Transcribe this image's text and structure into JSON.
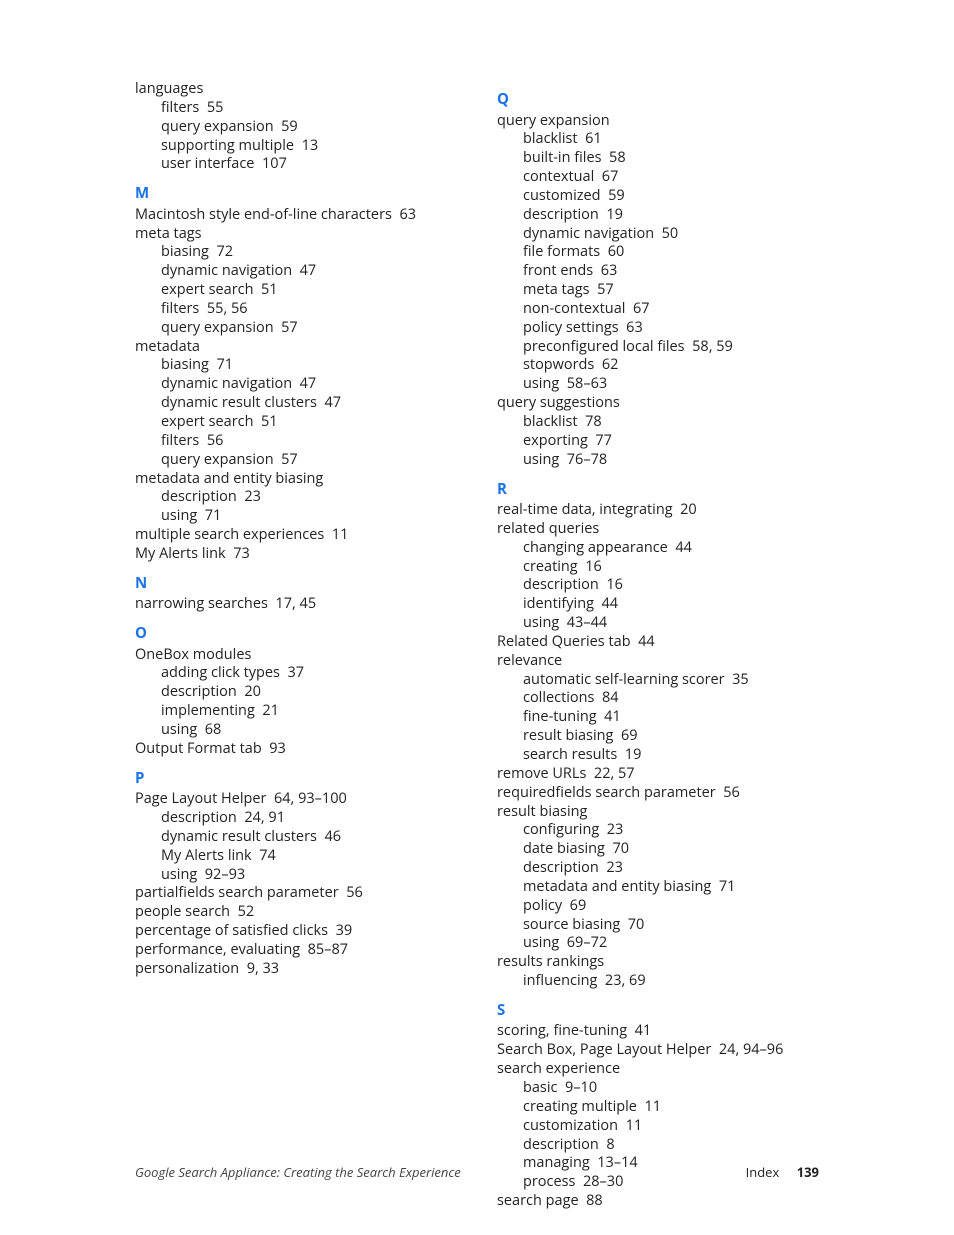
{
  "letter_color": "#1a73e8",
  "footer": {
    "title": "Google Search Appliance: Creating the Search Experience",
    "section": "Index",
    "page": "139"
  },
  "left": [
    {
      "type": "entry",
      "level": 0,
      "text": "languages"
    },
    {
      "type": "entry",
      "level": 1,
      "text": "filters",
      "pages": "55"
    },
    {
      "type": "entry",
      "level": 1,
      "text": "query expansion",
      "pages": "59"
    },
    {
      "type": "entry",
      "level": 1,
      "text": "supporting multiple",
      "pages": "13"
    },
    {
      "type": "entry",
      "level": 1,
      "text": "user interface",
      "pages": "107"
    },
    {
      "type": "letter",
      "text": "M"
    },
    {
      "type": "entry",
      "level": 0,
      "text": "Macintosh style end-of-line characters",
      "pages": "63"
    },
    {
      "type": "entry",
      "level": 0,
      "text": "meta tags"
    },
    {
      "type": "entry",
      "level": 1,
      "text": "biasing",
      "pages": "72"
    },
    {
      "type": "entry",
      "level": 1,
      "text": "dynamic navigation",
      "pages": "47"
    },
    {
      "type": "entry",
      "level": 1,
      "text": "expert search",
      "pages": "51"
    },
    {
      "type": "entry",
      "level": 1,
      "text": "filters",
      "pages": "55, 56"
    },
    {
      "type": "entry",
      "level": 1,
      "text": "query expansion",
      "pages": "57"
    },
    {
      "type": "entry",
      "level": 0,
      "text": "metadata"
    },
    {
      "type": "entry",
      "level": 1,
      "text": "biasing",
      "pages": "71"
    },
    {
      "type": "entry",
      "level": 1,
      "text": "dynamic navigation",
      "pages": "47"
    },
    {
      "type": "entry",
      "level": 1,
      "text": "dynamic result clusters",
      "pages": "47"
    },
    {
      "type": "entry",
      "level": 1,
      "text": "expert search",
      "pages": "51"
    },
    {
      "type": "entry",
      "level": 1,
      "text": "filters",
      "pages": "56"
    },
    {
      "type": "entry",
      "level": 1,
      "text": "query expansion",
      "pages": "57"
    },
    {
      "type": "entry",
      "level": 0,
      "text": "metadata and entity biasing"
    },
    {
      "type": "entry",
      "level": 1,
      "text": "description",
      "pages": "23"
    },
    {
      "type": "entry",
      "level": 1,
      "text": "using",
      "pages": "71"
    },
    {
      "type": "entry",
      "level": 0,
      "text": "multiple search experiences",
      "pages": "11"
    },
    {
      "type": "entry",
      "level": 0,
      "text": "My Alerts link",
      "pages": "73"
    },
    {
      "type": "letter",
      "text": "N"
    },
    {
      "type": "entry",
      "level": 0,
      "text": "narrowing searches",
      "pages": "17, 45"
    },
    {
      "type": "letter",
      "text": "O"
    },
    {
      "type": "entry",
      "level": 0,
      "text": "OneBox modules"
    },
    {
      "type": "entry",
      "level": 1,
      "text": "adding click types",
      "pages": "37"
    },
    {
      "type": "entry",
      "level": 1,
      "text": "description",
      "pages": "20"
    },
    {
      "type": "entry",
      "level": 1,
      "text": "implementing",
      "pages": "21"
    },
    {
      "type": "entry",
      "level": 1,
      "text": "using",
      "pages": "68"
    },
    {
      "type": "entry",
      "level": 0,
      "text": "Output Format tab",
      "pages": "93"
    },
    {
      "type": "letter",
      "text": "P"
    },
    {
      "type": "entry",
      "level": 0,
      "text": "Page Layout Helper",
      "pages": "64, 93–100"
    },
    {
      "type": "entry",
      "level": 1,
      "text": "description",
      "pages": "24, 91"
    },
    {
      "type": "entry",
      "level": 1,
      "text": "dynamic result clusters",
      "pages": "46"
    },
    {
      "type": "entry",
      "level": 1,
      "text": "My Alerts link",
      "pages": "74"
    },
    {
      "type": "entry",
      "level": 1,
      "text": "using",
      "pages": "92–93"
    },
    {
      "type": "entry",
      "level": 0,
      "text": "partialfields search parameter",
      "pages": "56"
    },
    {
      "type": "entry",
      "level": 0,
      "text": "people search",
      "pages": "52"
    },
    {
      "type": "entry",
      "level": 0,
      "text": "percentage of satisfied clicks",
      "pages": "39"
    },
    {
      "type": "entry",
      "level": 0,
      "text": "performance, evaluating",
      "pages": "85–87"
    },
    {
      "type": "entry",
      "level": 0,
      "text": "personalization",
      "pages": "9, 33"
    }
  ],
  "right": [
    {
      "type": "letter",
      "text": "Q"
    },
    {
      "type": "entry",
      "level": 0,
      "text": "query expansion"
    },
    {
      "type": "entry",
      "level": 1,
      "text": "blacklist",
      "pages": "61"
    },
    {
      "type": "entry",
      "level": 1,
      "text": "built-in files",
      "pages": "58"
    },
    {
      "type": "entry",
      "level": 1,
      "text": "contextual",
      "pages": "67"
    },
    {
      "type": "entry",
      "level": 1,
      "text": "customized",
      "pages": "59"
    },
    {
      "type": "entry",
      "level": 1,
      "text": "description",
      "pages": "19"
    },
    {
      "type": "entry",
      "level": 1,
      "text": "dynamic navigation",
      "pages": "50"
    },
    {
      "type": "entry",
      "level": 1,
      "text": "file formats",
      "pages": "60"
    },
    {
      "type": "entry",
      "level": 1,
      "text": "front ends",
      "pages": "63"
    },
    {
      "type": "entry",
      "level": 1,
      "text": "meta tags",
      "pages": "57"
    },
    {
      "type": "entry",
      "level": 1,
      "text": "non-contextual",
      "pages": "67"
    },
    {
      "type": "entry",
      "level": 1,
      "text": "policy settings",
      "pages": "63"
    },
    {
      "type": "entry",
      "level": 1,
      "text": "preconfigured local files",
      "pages": "58, 59"
    },
    {
      "type": "entry",
      "level": 1,
      "text": "stopwords",
      "pages": "62"
    },
    {
      "type": "entry",
      "level": 1,
      "text": "using",
      "pages": "58–63"
    },
    {
      "type": "entry",
      "level": 0,
      "text": "query suggestions"
    },
    {
      "type": "entry",
      "level": 1,
      "text": "blacklist",
      "pages": "78"
    },
    {
      "type": "entry",
      "level": 1,
      "text": "exporting",
      "pages": "77"
    },
    {
      "type": "entry",
      "level": 1,
      "text": "using",
      "pages": "76–78"
    },
    {
      "type": "letter",
      "text": "R"
    },
    {
      "type": "entry",
      "level": 0,
      "text": "real-time data, integrating",
      "pages": "20"
    },
    {
      "type": "entry",
      "level": 0,
      "text": "related queries"
    },
    {
      "type": "entry",
      "level": 1,
      "text": "changing appearance",
      "pages": "44"
    },
    {
      "type": "entry",
      "level": 1,
      "text": "creating",
      "pages": "16"
    },
    {
      "type": "entry",
      "level": 1,
      "text": "description",
      "pages": "16"
    },
    {
      "type": "entry",
      "level": 1,
      "text": "identifying",
      "pages": "44"
    },
    {
      "type": "entry",
      "level": 1,
      "text": "using",
      "pages": "43–44"
    },
    {
      "type": "entry",
      "level": 0,
      "text": "Related Queries tab",
      "pages": "44"
    },
    {
      "type": "entry",
      "level": 0,
      "text": "relevance"
    },
    {
      "type": "entry",
      "level": 1,
      "text": "automatic self-learning scorer",
      "pages": "35"
    },
    {
      "type": "entry",
      "level": 1,
      "text": "collections",
      "pages": "84"
    },
    {
      "type": "entry",
      "level": 1,
      "text": "fine-tuning",
      "pages": "41"
    },
    {
      "type": "entry",
      "level": 1,
      "text": "result biasing",
      "pages": "69"
    },
    {
      "type": "entry",
      "level": 1,
      "text": "search results",
      "pages": "19"
    },
    {
      "type": "entry",
      "level": 0,
      "text": "remove URLs",
      "pages": "22, 57"
    },
    {
      "type": "entry",
      "level": 0,
      "text": "requiredfields search parameter",
      "pages": "56"
    },
    {
      "type": "entry",
      "level": 0,
      "text": "result biasing"
    },
    {
      "type": "entry",
      "level": 1,
      "text": "configuring",
      "pages": "23"
    },
    {
      "type": "entry",
      "level": 1,
      "text": "date biasing",
      "pages": "70"
    },
    {
      "type": "entry",
      "level": 1,
      "text": "description",
      "pages": "23"
    },
    {
      "type": "entry",
      "level": 1,
      "text": "metadata and entity biasing",
      "pages": "71"
    },
    {
      "type": "entry",
      "level": 1,
      "text": "policy",
      "pages": "69"
    },
    {
      "type": "entry",
      "level": 1,
      "text": "source biasing",
      "pages": "70"
    },
    {
      "type": "entry",
      "level": 1,
      "text": "using",
      "pages": "69–72"
    },
    {
      "type": "entry",
      "level": 0,
      "text": "results rankings"
    },
    {
      "type": "entry",
      "level": 1,
      "text": "influencing",
      "pages": "23, 69"
    },
    {
      "type": "letter",
      "text": "S"
    },
    {
      "type": "entry",
      "level": 0,
      "text": "scoring, fine-tuning",
      "pages": "41"
    },
    {
      "type": "entry",
      "level": 0,
      "text": "Search Box, Page Layout Helper",
      "pages": "24, 94–96"
    },
    {
      "type": "entry",
      "level": 0,
      "text": "search experience"
    },
    {
      "type": "entry",
      "level": 1,
      "text": "basic",
      "pages": "9–10"
    },
    {
      "type": "entry",
      "level": 1,
      "text": "creating multiple",
      "pages": "11"
    },
    {
      "type": "entry",
      "level": 1,
      "text": "customization",
      "pages": "11"
    },
    {
      "type": "entry",
      "level": 1,
      "text": "description",
      "pages": "8"
    },
    {
      "type": "entry",
      "level": 1,
      "text": "managing",
      "pages": "13–14"
    },
    {
      "type": "entry",
      "level": 1,
      "text": "process",
      "pages": "28–30"
    },
    {
      "type": "entry",
      "level": 0,
      "text": "search page",
      "pages": "88"
    }
  ]
}
